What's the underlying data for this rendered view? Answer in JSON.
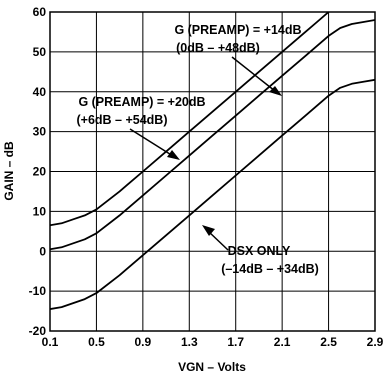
{
  "chart_data": {
    "type": "line",
    "xlabel": "VGN – Volts",
    "ylabel": "GAIN – dB",
    "xlim": [
      0.1,
      2.9
    ],
    "ylim": [
      -20,
      60
    ],
    "x_ticks": [
      "0.1",
      "0.5",
      "0.9",
      "1.3",
      "1.7",
      "2.1",
      "2.5",
      "2.9"
    ],
    "y_ticks": [
      "60",
      "50",
      "40",
      "30",
      "20",
      "10",
      "0",
      "-10",
      "-20"
    ],
    "grid": true,
    "series": [
      {
        "x": [
          0.1,
          0.2,
          0.3,
          0.4,
          0.5,
          0.7,
          0.9,
          1.1,
          1.3,
          1.5,
          1.7,
          1.9,
          2.1,
          2.3,
          2.4,
          2.5,
          2.6,
          2.7,
          2.8,
          2.9
        ],
        "y": [
          6.5,
          7.0,
          8.0,
          9.0,
          10.5,
          15.0,
          20.0,
          25.0,
          30.0,
          35.0,
          40.0,
          45.0,
          50.0,
          55.0,
          57.5,
          60.0,
          62.0,
          63.0,
          63.5,
          64.0
        ]
      },
      {
        "x": [
          0.1,
          0.2,
          0.3,
          0.4,
          0.5,
          0.7,
          0.9,
          1.1,
          1.3,
          1.5,
          1.7,
          1.9,
          2.1,
          2.3,
          2.4,
          2.5,
          2.6,
          2.7,
          2.8,
          2.9
        ],
        "y": [
          0.5,
          1.0,
          2.0,
          3.0,
          4.5,
          9.0,
          14.0,
          19.0,
          24.0,
          29.0,
          34.0,
          39.0,
          44.0,
          49.0,
          51.5,
          54.0,
          56.0,
          57.0,
          57.5,
          58.0
        ]
      },
      {
        "x": [
          0.1,
          0.2,
          0.3,
          0.4,
          0.5,
          0.7,
          0.9,
          1.1,
          1.3,
          1.5,
          1.7,
          1.9,
          2.1,
          2.3,
          2.4,
          2.5,
          2.6,
          2.7,
          2.8,
          2.9
        ],
        "y": [
          -14.5,
          -14.0,
          -13.0,
          -12.0,
          -10.5,
          -6.0,
          -1.0,
          4.0,
          9.0,
          14.0,
          19.0,
          24.0,
          29.0,
          34.0,
          36.5,
          39.0,
          41.0,
          42.0,
          42.5,
          43.0
        ]
      }
    ],
    "annotations": [
      {
        "lines": [
          "G (PREAMP) = +14dB",
          "(0dB – +48dB)"
        ]
      },
      {
        "lines": [
          "G (PREAMP) = +20dB",
          "(+6dB – +54dB)"
        ]
      },
      {
        "lines": [
          "DSX ONLY",
          "(–14dB – +34dB)"
        ]
      }
    ]
  }
}
